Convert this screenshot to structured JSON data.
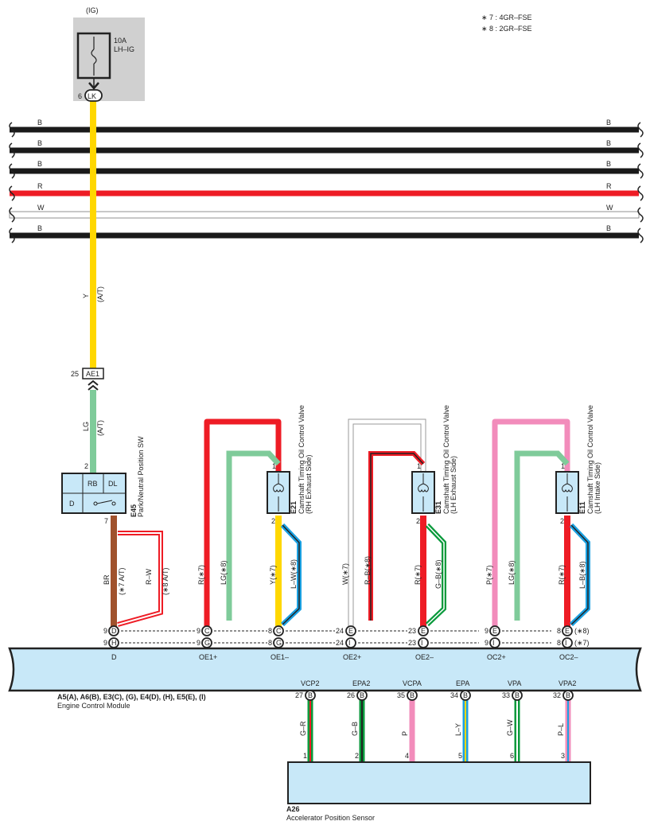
{
  "notes": [
    "∗ 7 : 4GR–FSE",
    "∗ 8 : 2GR–FSE"
  ],
  "ig": {
    "label": "(IG)",
    "fuse_amp": "10A",
    "fuse_name": "LH–IG",
    "connector": "LK",
    "pin": "6"
  },
  "buses": [
    {
      "label": "B",
      "color": "#1a1a1a"
    },
    {
      "label": "B",
      "color": "#1a1a1a"
    },
    {
      "label": "B",
      "color": "#1a1a1a"
    },
    {
      "label": "R",
      "color": "#ee1c25"
    },
    {
      "label": "W",
      "color": "#ffffff"
    },
    {
      "label": "B",
      "color": "#1a1a1a"
    }
  ],
  "wire_y": {
    "color_code": "Y",
    "note": "(A/T)",
    "color": "#ffd700"
  },
  "ae1": {
    "connector": "AE1",
    "pin": "25"
  },
  "wire_lg": {
    "color_code": "LG",
    "note": "(A/T)",
    "color": "#7fcb9a"
  },
  "e45": {
    "id": "E45",
    "name": "Park/Neutral Position SW",
    "cells": [
      "RB",
      "DL",
      "D"
    ],
    "pin_top": "2",
    "pin_bottom": "7"
  },
  "wire_br": {
    "color_code": "BR",
    "note": "(∗7 A/T)",
    "color": "#a0522d"
  },
  "wire_rw": {
    "color_code": "R–W",
    "note": "(∗8 A/T)"
  },
  "valves": [
    {
      "id": "E21",
      "name": "Camshaft Timing Oil Control Valve",
      "side": "(RH Exhaust Side)",
      "pin1": "1",
      "pin2": "2"
    },
    {
      "id": "E31",
      "name": "Camshaft Timing Oil Control Valve",
      "side": "(LH Exhaust Side)",
      "pin1": "1",
      "pin2": "2"
    },
    {
      "id": "E11",
      "name": "Camshaft Timing Oil Control Valve",
      "side": "(LH Intake Side)",
      "pin1": "1",
      "pin2": "2"
    }
  ],
  "valve_wires": [
    "R(∗7)",
    "LG(∗8)",
    "Y(∗7)",
    "L–W(∗8)",
    "W(∗7)",
    "R–B(∗8)",
    "R(∗7)",
    "G–B(∗8)",
    "P(∗7)",
    "LG(∗8)",
    "R(∗7)",
    "L–B(∗8)"
  ],
  "ecm": {
    "title": "A5(A), A6(B), E3(C), (G), E4(D), (H), E5(E), (I)",
    "name": "Engine Control Module",
    "top_terminals": [
      {
        "label": "D",
        "row1": {
          "pin": "9",
          "conn": "D"
        },
        "row2": {
          "pin": "9",
          "conn": "H"
        }
      },
      {
        "label": "OE1+",
        "row1": {
          "pin": "9",
          "conn": "C"
        },
        "row2": {
          "pin": "9",
          "conn": "G"
        }
      },
      {
        "label": "OE1–",
        "row1": {
          "pin": "8",
          "conn": "C"
        },
        "row2": {
          "pin": "8",
          "conn": "G"
        }
      },
      {
        "label": "OE2+",
        "row1": {
          "pin": "24",
          "conn": "E"
        },
        "row2": {
          "pin": "24",
          "conn": "I"
        }
      },
      {
        "label": "OE2–",
        "row1": {
          "pin": "23",
          "conn": "E"
        },
        "row2": {
          "pin": "23",
          "conn": "I"
        }
      },
      {
        "label": "OC2+",
        "row1": {
          "pin": "9",
          "conn": "E"
        },
        "row2": {
          "pin": "9",
          "conn": "I"
        }
      },
      {
        "label": "OC2–",
        "row1": {
          "pin": "8",
          "conn": "E"
        },
        "row2": {
          "pin": "8",
          "conn": "I"
        }
      }
    ],
    "row_notes": [
      "(∗8)",
      "(∗7)"
    ],
    "bottom_terminals": [
      {
        "label": "VCP2",
        "pin": "27",
        "conn": "B",
        "wire": "G–R",
        "sensor_pin": "1"
      },
      {
        "label": "EPA2",
        "pin": "26",
        "conn": "B",
        "wire": "G–B",
        "sensor_pin": "2"
      },
      {
        "label": "VCPA",
        "pin": "35",
        "conn": "B",
        "wire": "P",
        "sensor_pin": "4"
      },
      {
        "label": "EPA",
        "pin": "34",
        "conn": "B",
        "wire": "L–Y",
        "sensor_pin": "5"
      },
      {
        "label": "VPA",
        "pin": "33",
        "conn": "B",
        "wire": "G–W",
        "sensor_pin": "6"
      },
      {
        "label": "VPA2",
        "pin": "32",
        "conn": "B",
        "wire": "P–L",
        "sensor_pin": "3"
      }
    ]
  },
  "a26": {
    "id": "A26",
    "name": "Accelerator Position Sensor"
  },
  "colors": {
    "red": "#ee1c25",
    "green": "#7fcb9a",
    "pink": "#f28cbb",
    "blue": "#1ba1e2",
    "dkgreen": "#0a9a3c",
    "module": "#c8e8f8",
    "gray_box": "#d0d0d0"
  }
}
